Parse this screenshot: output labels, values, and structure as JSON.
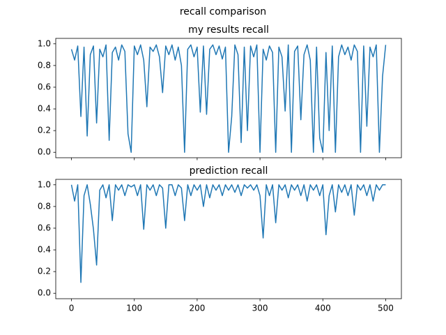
{
  "title": "recall comparison",
  "chart_data": [
    {
      "type": "line",
      "title": "my results recall",
      "color": "#1f77b4",
      "show_xtick_labels": false,
      "x": [
        0,
        5,
        10,
        15,
        20,
        25,
        30,
        35,
        40,
        45,
        50,
        55,
        60,
        65,
        70,
        75,
        80,
        85,
        90,
        95,
        100,
        105,
        110,
        115,
        120,
        125,
        130,
        135,
        140,
        145,
        150,
        155,
        160,
        165,
        170,
        175,
        180,
        185,
        190,
        195,
        200,
        205,
        210,
        215,
        220,
        225,
        230,
        235,
        240,
        245,
        250,
        255,
        260,
        265,
        270,
        275,
        280,
        285,
        290,
        295,
        300,
        305,
        310,
        315,
        320,
        325,
        330,
        335,
        340,
        345,
        350,
        355,
        360,
        365,
        370,
        375,
        380,
        385,
        390,
        395,
        400,
        405,
        410,
        415,
        420,
        425,
        430,
        435,
        440,
        445,
        450,
        455,
        460,
        465,
        470,
        475,
        480,
        485,
        490,
        495,
        500
      ],
      "values": [
        0.95,
        0.85,
        0.98,
        0.33,
        0.97,
        0.15,
        0.9,
        0.98,
        0.27,
        0.95,
        0.88,
        0.99,
        0.11,
        0.92,
        0.97,
        0.85,
        0.99,
        0.93,
        0.17,
        0.0,
        0.98,
        0.9,
        0.99,
        0.85,
        0.42,
        0.97,
        0.93,
        0.99,
        0.88,
        0.55,
        0.98,
        0.9,
        0.99,
        0.85,
        0.97,
        0.8,
        0.0,
        0.95,
        0.99,
        0.88,
        0.97,
        0.37,
        0.98,
        0.35,
        0.95,
        0.99,
        0.9,
        0.98,
        0.86,
        0.97,
        0.0,
        0.33,
        0.99,
        0.9,
        0.09,
        0.97,
        0.2,
        0.98,
        0.88,
        0.99,
        0.0,
        0.95,
        0.85,
        0.98,
        0.92,
        0.0,
        0.97,
        0.88,
        0.38,
        0.99,
        0.0,
        0.93,
        0.98,
        0.3,
        0.9,
        0.99,
        0.85,
        0.0,
        0.97,
        0.13,
        0.0,
        0.92,
        0.2,
        0.98,
        0.0,
        0.88,
        0.99,
        0.9,
        0.97,
        0.85,
        0.99,
        0.93,
        0.0,
        0.98,
        0.24,
        0.97,
        0.88,
        0.99,
        0.0,
        0.7,
        0.99
      ],
      "xlim": [
        -25,
        525
      ],
      "xticks": [
        0,
        100,
        200,
        300,
        400,
        500
      ],
      "ylim": [
        -0.05,
        1.05
      ],
      "yticks": [
        {
          "value": 0,
          "label": "0.0"
        },
        0.2,
        0.4,
        0.6,
        0.8,
        {
          "value": 1,
          "label": "1.0"
        }
      ]
    },
    {
      "type": "line",
      "title": "prediction recall",
      "color": "#1f77b4",
      "show_xtick_labels": true,
      "x": [
        0,
        5,
        10,
        15,
        20,
        25,
        30,
        35,
        40,
        45,
        50,
        55,
        60,
        65,
        70,
        75,
        80,
        85,
        90,
        95,
        100,
        105,
        110,
        115,
        120,
        125,
        130,
        135,
        140,
        145,
        150,
        155,
        160,
        165,
        170,
        175,
        180,
        185,
        190,
        195,
        200,
        205,
        210,
        215,
        220,
        225,
        230,
        235,
        240,
        245,
        250,
        255,
        260,
        265,
        270,
        275,
        280,
        285,
        290,
        295,
        300,
        305,
        310,
        315,
        320,
        325,
        330,
        335,
        340,
        345,
        350,
        355,
        360,
        365,
        370,
        375,
        380,
        385,
        390,
        395,
        400,
        405,
        410,
        415,
        420,
        425,
        430,
        435,
        440,
        445,
        450,
        455,
        460,
        465,
        470,
        475,
        480,
        485,
        490,
        495,
        500
      ],
      "values": [
        1.0,
        0.85,
        1.0,
        0.1,
        0.9,
        1.0,
        0.82,
        0.59,
        0.26,
        0.95,
        1.0,
        0.88,
        1.0,
        0.67,
        1.0,
        0.95,
        1.0,
        0.9,
        1.0,
        0.98,
        1.0,
        0.9,
        1.0,
        0.59,
        1.0,
        0.95,
        1.0,
        0.9,
        1.0,
        0.97,
        0.6,
        1.0,
        1.0,
        0.9,
        1.0,
        0.97,
        0.67,
        1.0,
        0.9,
        1.0,
        0.95,
        1.0,
        0.8,
        1.0,
        0.88,
        1.0,
        0.95,
        1.0,
        0.9,
        1.0,
        0.95,
        1.0,
        0.93,
        1.0,
        0.9,
        1.0,
        0.97,
        1.0,
        0.95,
        1.0,
        0.9,
        0.51,
        1.0,
        0.9,
        1.0,
        0.65,
        1.0,
        0.95,
        1.0,
        0.88,
        1.0,
        0.95,
        1.0,
        0.9,
        1.0,
        0.85,
        1.0,
        0.95,
        1.0,
        0.9,
        1.0,
        0.54,
        0.9,
        1.0,
        0.75,
        1.0,
        0.93,
        1.0,
        0.9,
        1.0,
        0.72,
        1.0,
        0.95,
        1.0,
        0.9,
        1.0,
        0.85,
        1.0,
        0.95,
        1.0,
        1.0
      ],
      "xlim": [
        -25,
        525
      ],
      "xticks": [
        0,
        100,
        200,
        300,
        400,
        500
      ],
      "ylim": [
        -0.05,
        1.05
      ],
      "yticks": [
        {
          "value": 0,
          "label": "0.0"
        },
        0.2,
        0.4,
        0.6,
        0.8,
        {
          "value": 1,
          "label": "1.0"
        }
      ]
    }
  ]
}
